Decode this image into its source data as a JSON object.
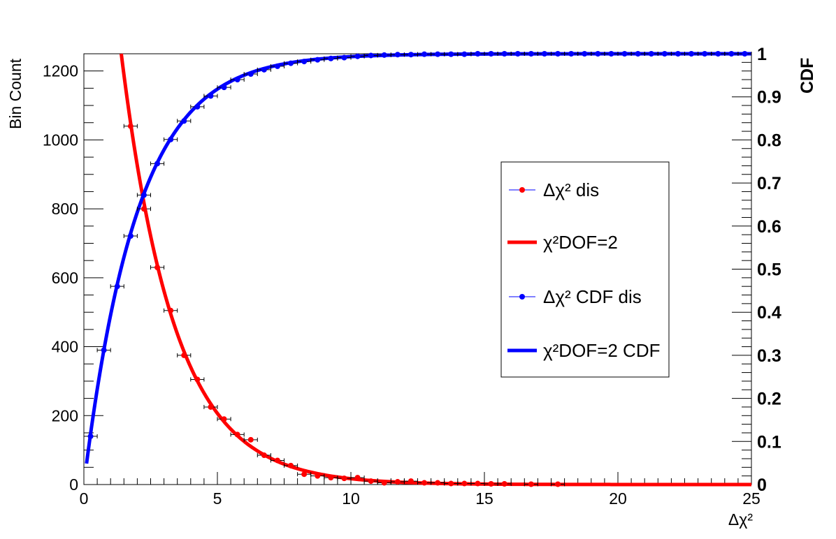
{
  "chart_data": {
    "type": "line",
    "xlabel": "Δχ²",
    "ylabel_left": "Bin Count",
    "ylabel_right": "CDF",
    "xlim": [
      0,
      25
    ],
    "ylim_left": [
      0,
      1250
    ],
    "ylim_right": [
      0,
      1
    ],
    "x_ticks": [
      "0",
      "5",
      "10",
      "15",
      "20",
      "25"
    ],
    "y_left_ticks": [
      "0",
      "200",
      "400",
      "600",
      "800",
      "1000",
      "1200"
    ],
    "y_right_ticks": [
      "0",
      "0.1",
      "0.2",
      "0.3",
      "0.4",
      "0.5",
      "0.6",
      "0.7",
      "0.8",
      "0.9",
      "1"
    ],
    "grid": false,
    "legend_position": "center-right",
    "legend": [
      {
        "label": "Δχ² dis",
        "marker": "point",
        "color": "#ff0000"
      },
      {
        "label": "χ²DOF=2",
        "marker": "line",
        "color": "#ff0000"
      },
      {
        "label": "Δχ² CDF dis",
        "marker": "point",
        "color": "#0000ff"
      },
      {
        "label": "χ²DOF=2 CDF",
        "marker": "line",
        "color": "#0000ff"
      }
    ],
    "series": [
      {
        "name": "Δχ² dis",
        "axis": "left",
        "kind": "points",
        "color": "#ff0000",
        "x": [
          1.75,
          2.25,
          2.75,
          3.25,
          3.75,
          4.25,
          4.75,
          5.25,
          5.75,
          6.25,
          6.75,
          7.25,
          7.75,
          8.25,
          8.75,
          9.25,
          9.75,
          10.25,
          10.75,
          11.25,
          11.75,
          12.25,
          12.75,
          13.25,
          13.75,
          14.25,
          14.75,
          15.25,
          15.75,
          16.75,
          17.75
        ],
        "y": [
          1040,
          800,
          630,
          505,
          375,
          305,
          225,
          190,
          145,
          130,
          85,
          70,
          55,
          30,
          25,
          20,
          18,
          20,
          10,
          5,
          8,
          10,
          5,
          5,
          3,
          3,
          3,
          2,
          2,
          1,
          1
        ],
        "xerr": 0.25
      },
      {
        "name": "χ²DOF=2",
        "axis": "left",
        "kind": "line",
        "color": "#ff0000",
        "function": "1250*exp(-(x-1.4)/2)",
        "x_range": [
          1.4,
          25
        ]
      },
      {
        "name": "Δχ² CDF dis",
        "axis": "right",
        "kind": "points",
        "color": "#0000ff",
        "x": [
          0.25,
          0.75,
          1.25,
          1.75,
          2.25,
          2.75,
          3.25,
          3.75,
          4.25,
          4.75,
          5.25,
          5.75,
          6.25,
          6.75,
          7.25,
          7.75,
          8.25,
          8.75,
          9.25,
          9.75,
          10.25,
          10.75,
          11.25,
          11.75,
          12.25,
          12.75,
          13.25,
          13.75,
          14.25,
          14.75,
          15.25,
          15.75,
          16.25,
          16.75,
          17.25,
          17.75,
          18.25,
          18.75,
          19.25,
          19.75,
          20.25,
          20.75,
          21.25,
          21.75,
          22.25,
          22.75,
          23.25,
          23.75,
          24.25,
          24.75
        ],
        "y": [
          0.112,
          0.312,
          0.46,
          0.577,
          0.672,
          0.745,
          0.801,
          0.844,
          0.877,
          0.902,
          0.922,
          0.94,
          0.953,
          0.963,
          0.971,
          0.978,
          0.982,
          0.986,
          0.989,
          0.991,
          0.994,
          0.996,
          0.997,
          0.998,
          0.998,
          0.999,
          0.999,
          0.999,
          0.999,
          1.0,
          1.0,
          1.0,
          1.0,
          1.0,
          1.0,
          1.0,
          1.0,
          1.0,
          1.0,
          1.0,
          1.0,
          1.0,
          1.0,
          1.0,
          1.0,
          1.0,
          1.0,
          1.0,
          1.0,
          1.0
        ],
        "xerr": 0.25
      },
      {
        "name": "χ²DOF=2 CDF",
        "axis": "right",
        "kind": "line",
        "color": "#0000ff",
        "function": "1-exp(-x/2)",
        "x_range": [
          0.1,
          25
        ]
      }
    ]
  }
}
